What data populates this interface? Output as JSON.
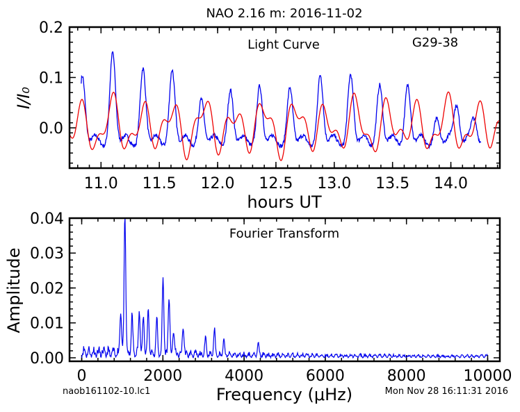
{
  "page": {
    "title": "NAO 2.16 m:  2016-11-02",
    "filename": "naob161102-10.lc1",
    "timestamp": "Mon Nov 28 16:11:31 2016"
  },
  "chart_data": [
    {
      "type": "line",
      "annotation": "Light Curve",
      "object": "G29-38",
      "xlabel": "hours UT",
      "ylabel": "I/I₀",
      "xlim": [
        10.73,
        14.42
      ],
      "ylim": [
        -0.08,
        0.2
      ],
      "xticks": [
        "11.0",
        "11.5",
        "12.0",
        "12.5",
        "13.0",
        "13.5",
        "14.0"
      ],
      "yticks": [
        "0.2",
        "0.1",
        "0.0"
      ],
      "colors": {
        "data": "#0000ee",
        "model": "#ee0000"
      },
      "series": [
        {
          "role": "observed",
          "peaks": [
            {
              "x": 10.84,
              "y": 0.103
            },
            {
              "x": 11.1,
              "y": 0.15
            },
            {
              "x": 11.36,
              "y": 0.118
            },
            {
              "x": 11.61,
              "y": 0.115
            },
            {
              "x": 11.86,
              "y": 0.057
            },
            {
              "x": 12.11,
              "y": 0.075
            },
            {
              "x": 12.36,
              "y": 0.083
            },
            {
              "x": 12.62,
              "y": 0.08
            },
            {
              "x": 12.88,
              "y": 0.105
            },
            {
              "x": 13.14,
              "y": 0.106
            },
            {
              "x": 13.39,
              "y": 0.085
            },
            {
              "x": 13.63,
              "y": 0.085
            },
            {
              "x": 13.88,
              "y": 0.02
            },
            {
              "x": 14.05,
              "y": 0.038
            },
            {
              "x": 14.2,
              "y": 0.005
            }
          ],
          "xrange": [
            10.83,
            14.26
          ],
          "baseline": -0.04
        },
        {
          "role": "model",
          "xrange": [
            10.73,
            14.42
          ],
          "offset": 0.003,
          "modes": [
            {
              "amp": 0.038,
              "period_h": 0.2612,
              "phase_x": 10.835
            },
            {
              "amp": 0.022,
              "period_h": 0.1367,
              "phase_x": 10.84
            },
            {
              "amp": 0.01,
              "period_h": 0.41,
              "phase_x": 11.1
            }
          ]
        }
      ]
    },
    {
      "type": "line",
      "annotation": "Fourier Transform",
      "xlabel": "Frequency (μHz)",
      "ylabel": "Amplitude",
      "xlim": [
        -300,
        10300
      ],
      "ylim": [
        -0.001,
        0.04
      ],
      "xticks": [
        "0",
        "2000",
        "4000",
        "6000",
        "8000",
        "10000"
      ],
      "yticks": [
        "0.04",
        "0.03",
        "0.02",
        "0.01",
        "0.00"
      ],
      "colors": {
        "data": "#0000ee"
      },
      "peaks": [
        {
          "x": 960,
          "y": 0.0125
        },
        {
          "x": 1065,
          "y": 0.041
        },
        {
          "x": 1240,
          "y": 0.0105
        },
        {
          "x": 1420,
          "y": 0.0125
        },
        {
          "x": 1520,
          "y": 0.0105
        },
        {
          "x": 1640,
          "y": 0.0128
        },
        {
          "x": 1850,
          "y": 0.01
        },
        {
          "x": 2005,
          "y": 0.022
        },
        {
          "x": 2150,
          "y": 0.0168
        },
        {
          "x": 2265,
          "y": 0.007
        },
        {
          "x": 2500,
          "y": 0.0082
        },
        {
          "x": 3050,
          "y": 0.005
        },
        {
          "x": 3270,
          "y": 0.007
        },
        {
          "x": 3500,
          "y": 0.004
        },
        {
          "x": 4350,
          "y": 0.004
        }
      ]
    }
  ]
}
